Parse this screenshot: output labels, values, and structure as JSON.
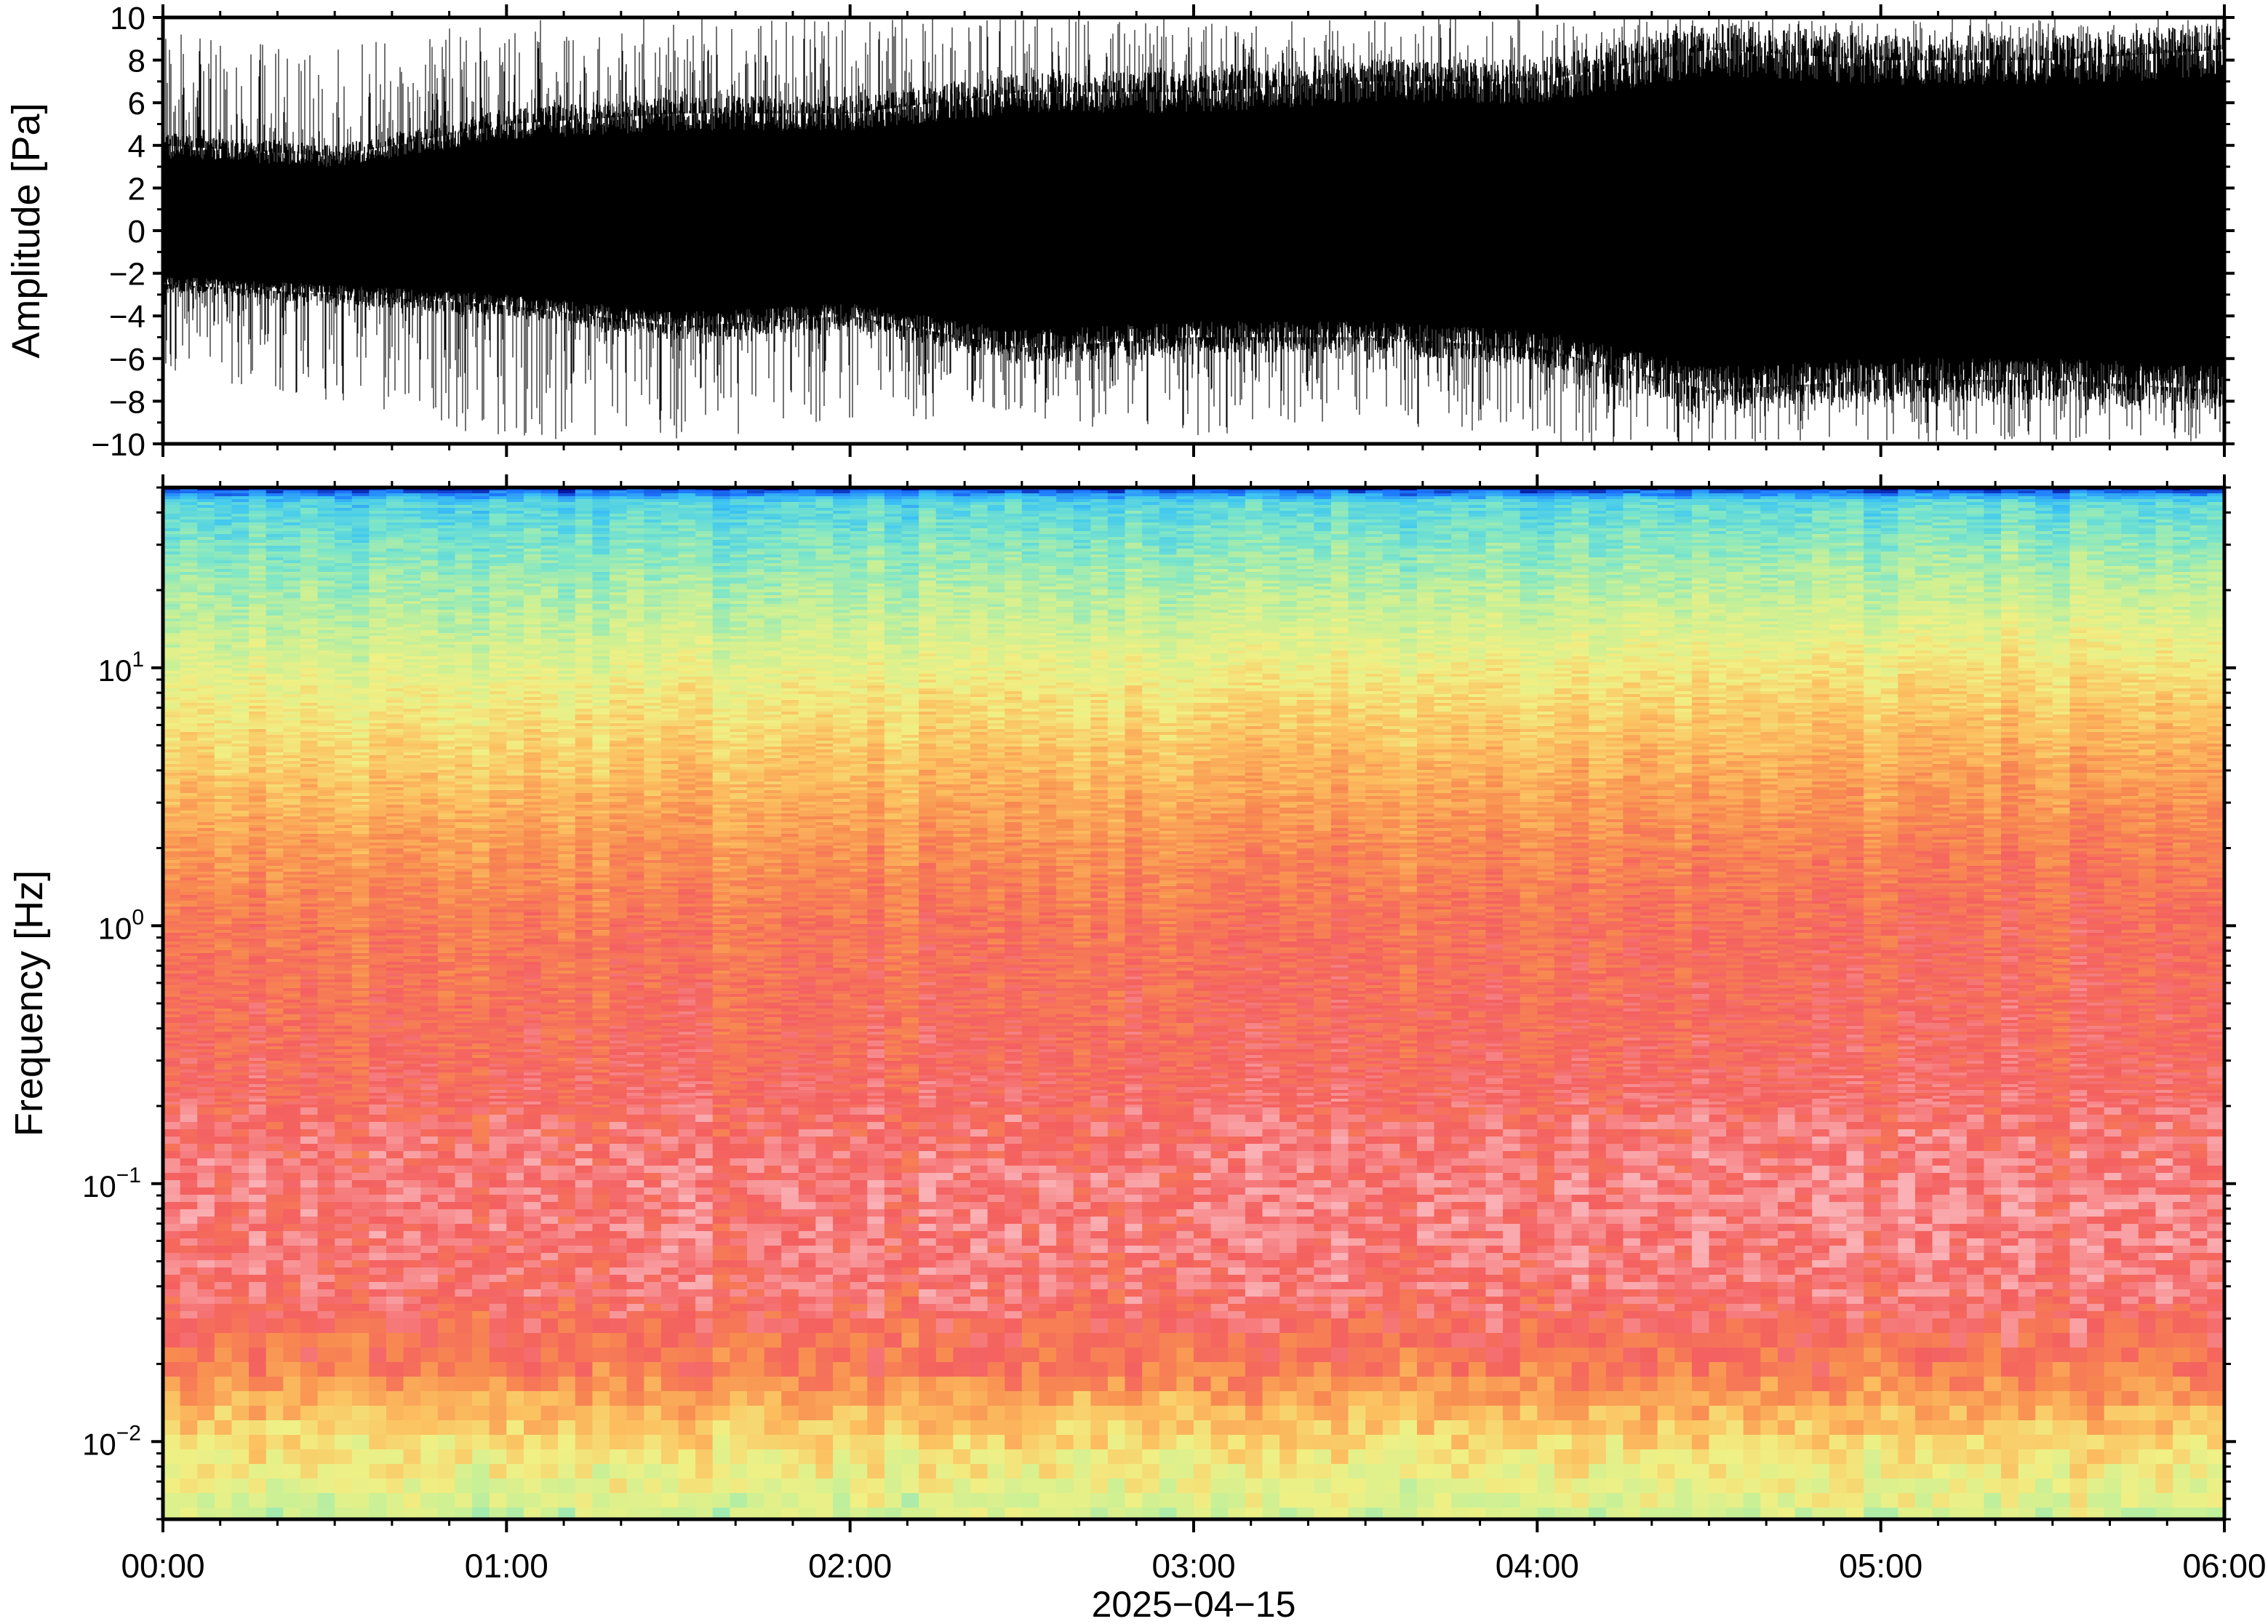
{
  "chart_data": [
    {
      "type": "line",
      "panel": "waveform",
      "ylabel": "Amplitude [Pa]",
      "ylim": [
        -10,
        10
      ],
      "yticks": [
        10,
        8,
        6,
        4,
        2,
        0,
        -2,
        -4,
        -6,
        -8,
        -10
      ],
      "ytick_labels": [
        "10",
        "8",
        "6",
        "4",
        "2",
        "0",
        "−2",
        "−4",
        "−6",
        "−8",
        "−10"
      ],
      "xlim": [
        "00:00",
        "06:00"
      ],
      "series": [
        {
          "x_hours": [
            0.0,
            0.5,
            1.0,
            1.5,
            2.0,
            2.5,
            3.0,
            3.5,
            4.0,
            4.5,
            5.0,
            5.5,
            6.0
          ],
          "envelope_upper": [
            4.0,
            3.5,
            5.0,
            5.5,
            5.5,
            6.5,
            6.5,
            7.0,
            7.0,
            8.5,
            8.0,
            8.0,
            8.5
          ],
          "envelope_lower": [
            -2.5,
            -3.0,
            -3.5,
            -4.5,
            -4.0,
            -5.5,
            -5.0,
            -5.0,
            -5.5,
            -7.5,
            -7.0,
            -7.0,
            -7.5
          ],
          "peak_max": [
            9.5,
            8.5,
            10,
            10,
            10,
            10,
            10,
            10,
            10,
            10,
            10,
            10,
            10
          ],
          "peak_min": [
            -7.0,
            -8.0,
            -10,
            -10,
            -9.0,
            -9.0,
            -10,
            -9.0,
            -10,
            -10,
            -10,
            -10,
            -10
          ]
        }
      ],
      "color": "#000000"
    },
    {
      "type": "heatmap",
      "panel": "spectrogram",
      "ylabel": "Frequency [Hz]",
      "yscale": "log",
      "ylim": [
        0.005,
        50
      ],
      "yticks": [
        {
          "value": 10,
          "base": "10",
          "exp": "1"
        },
        {
          "value": 1,
          "base": "10",
          "exp": "0"
        },
        {
          "value": 0.1,
          "base": "10",
          "exp": "−1"
        },
        {
          "value": 0.01,
          "base": "10",
          "exp": "−2"
        }
      ],
      "xlabel": "2025−04−15",
      "xticks": [
        "00:00",
        "01:00",
        "02:00",
        "03:00",
        "04:00",
        "05:00",
        "06:00"
      ],
      "xlim": [
        "00:00",
        "06:00"
      ],
      "colormap": "rainbow-like (dark blue → blue → cyan → green → yellow → orange → red → pink)",
      "colormap_stops": [
        "#00008b",
        "#1e78ff",
        "#40c8f0",
        "#7de6c8",
        "#c8f096",
        "#f0f084",
        "#fcc060",
        "#f88c50",
        "#f46060",
        "#fab0b4"
      ],
      "level_profile": {
        "log10_freq": [
          1.7,
          1.65,
          1.5,
          1.2,
          0.9,
          0.6,
          0.3,
          0.0,
          -0.5,
          -1.0,
          -1.4,
          -1.7,
          -1.9,
          -2.1,
          -2.3
        ],
        "level_start": [
          0.05,
          0.25,
          0.32,
          0.42,
          0.54,
          0.64,
          0.74,
          0.82,
          0.86,
          0.92,
          0.9,
          0.8,
          0.64,
          0.54,
          0.45
        ],
        "level_end": [
          0.05,
          0.28,
          0.36,
          0.5,
          0.64,
          0.74,
          0.82,
          0.86,
          0.88,
          0.94,
          0.92,
          0.82,
          0.66,
          0.56,
          0.47
        ]
      }
    }
  ]
}
